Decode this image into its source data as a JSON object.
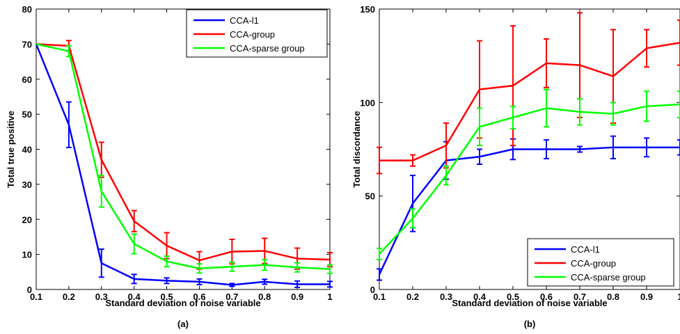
{
  "chart_data": [
    {
      "type": "line",
      "panel_label": "(a)",
      "xlabel": "Standard deviation of noise variable",
      "ylabel": "Total true positive",
      "x": [
        0.1,
        0.2,
        0.3,
        0.4,
        0.5,
        0.6,
        0.7,
        0.8,
        0.9,
        1.0
      ],
      "x_ticks": [
        "0.1",
        "0.2",
        "0.3",
        "0.4",
        "0.5",
        "0.6",
        "0.7",
        "0.8",
        "0.9",
        "1"
      ],
      "y_ticks": [
        "0",
        "10",
        "20",
        "30",
        "40",
        "50",
        "60",
        "70",
        "80"
      ],
      "xlim": [
        0.1,
        1.0
      ],
      "ylim": [
        0,
        80
      ],
      "legend_position": "top-right",
      "series": [
        {
          "name": "CCA-l1",
          "color": "#0000ff",
          "values": [
            70,
            47,
            7.5,
            3,
            2.5,
            2.2,
            1.3,
            2.2,
            1.5,
            1.5
          ],
          "errors": [
            0,
            6.5,
            4,
            1.3,
            0.8,
            0.8,
            0.4,
            0.7,
            0.9,
            0.8
          ]
        },
        {
          "name": "CCA-group",
          "color": "#ff0000",
          "values": [
            70,
            69.5,
            37,
            19.5,
            12.5,
            8.3,
            10.8,
            11,
            8.8,
            8.5
          ],
          "errors": [
            0,
            1.5,
            5,
            3,
            3.7,
            2.5,
            3.5,
            3.6,
            3,
            2
          ]
        },
        {
          "name": "CCA-sparse group",
          "color": "#00ff00",
          "values": [
            70,
            68,
            28,
            13,
            8,
            6,
            6.5,
            7,
            6.3,
            5.8
          ],
          "errors": [
            0,
            1.5,
            4.5,
            2.8,
            1.5,
            1.3,
            1.3,
            1.5,
            1.3,
            1.2
          ]
        }
      ]
    },
    {
      "type": "line",
      "panel_label": "(b)",
      "xlabel": "Standard deviation of noise variable",
      "ylabel": "Total discordance",
      "x": [
        0.1,
        0.2,
        0.3,
        0.4,
        0.5,
        0.6,
        0.7,
        0.8,
        0.9,
        1.0
      ],
      "x_ticks": [
        "0.1",
        "0.2",
        "0.3",
        "0.4",
        "0.5",
        "0.6",
        "0.7",
        "0.8",
        "0.9",
        "1"
      ],
      "y_ticks": [
        "0",
        "50",
        "100",
        "150"
      ],
      "xlim": [
        0.1,
        1.0
      ],
      "ylim": [
        0,
        150
      ],
      "legend_position": "bottom-right",
      "series": [
        {
          "name": "CCA-l1",
          "color": "#0000ff",
          "values": [
            8,
            46,
            69,
            71,
            75,
            75,
            75,
            76,
            76,
            76
          ],
          "errors": [
            3,
            15,
            10,
            4,
            5.5,
            5,
            1.5,
            6,
            5,
            4
          ]
        },
        {
          "name": "CCA-group",
          "color": "#ff0000",
          "values": [
            69,
            69,
            77,
            107,
            109,
            121,
            120,
            114,
            129,
            132
          ],
          "errors": [
            7,
            3,
            12,
            26,
            32,
            13,
            28,
            25,
            10,
            12
          ]
        },
        {
          "name": "CCA-sparse group",
          "color": "#00ff00",
          "values": [
            19,
            38,
            61,
            87,
            92,
            97,
            95,
            94,
            98,
            99
          ],
          "errors": [
            3,
            5,
            5,
            10,
            6,
            10,
            7,
            6,
            8,
            7
          ]
        }
      ]
    }
  ]
}
